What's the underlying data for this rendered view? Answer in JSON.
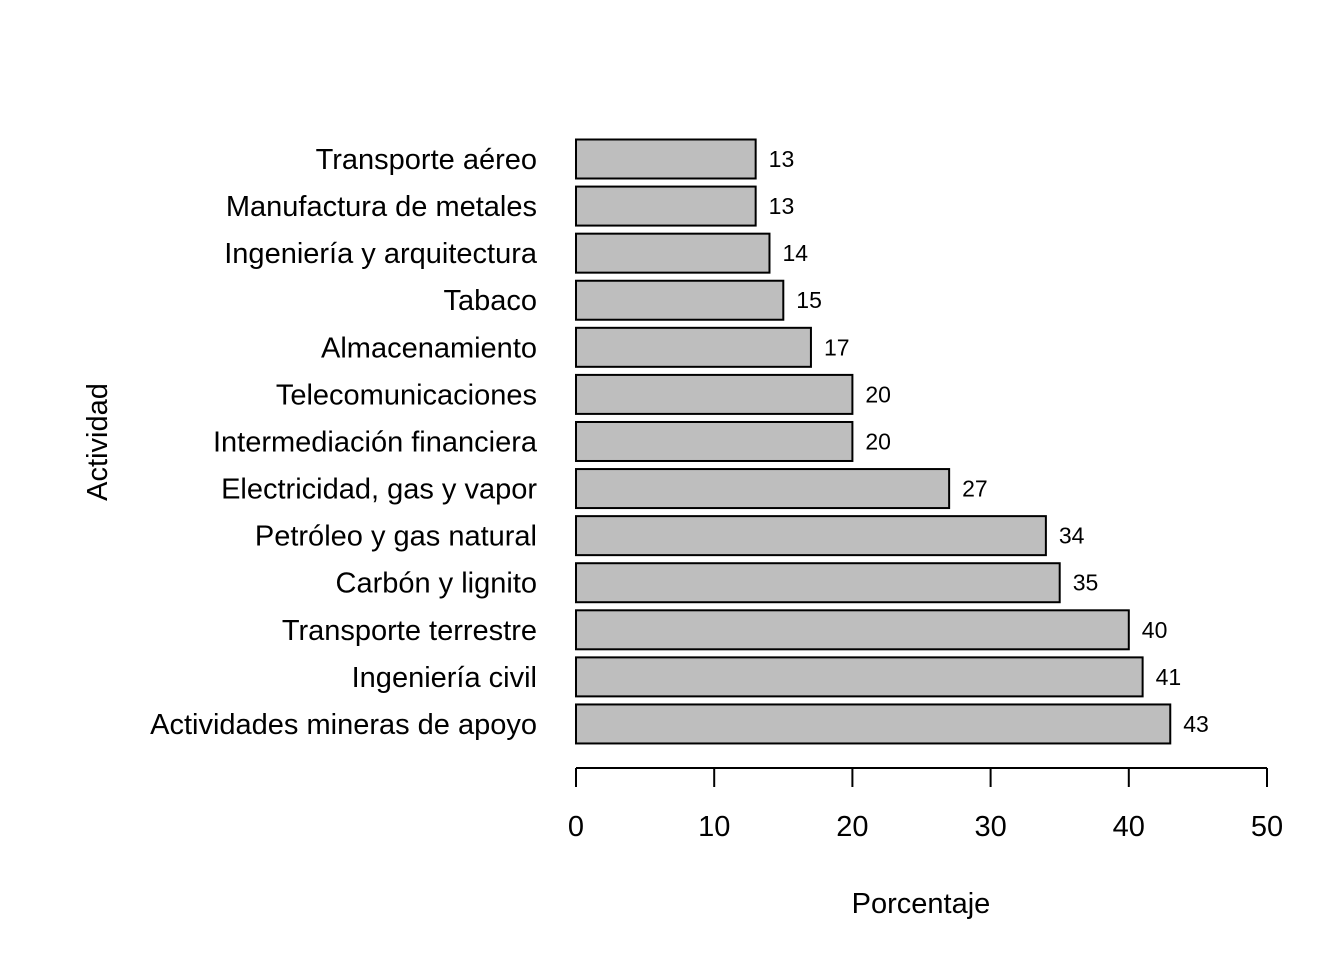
{
  "chart_data": {
    "type": "bar",
    "orientation": "horizontal",
    "title": "",
    "xlabel": "Porcentaje",
    "ylabel": "Actividad",
    "categories": [
      "Transporte aéreo",
      "Manufactura de metales",
      "Ingeniería y arquitectura",
      "Tabaco",
      "Almacenamiento",
      "Telecomunicaciones",
      "Intermediación financiera",
      "Electricidad, gas y vapor",
      "Petróleo y gas natural",
      "Carbón y lignito",
      "Transporte terrestre",
      "Ingeniería civil",
      "Actividades mineras de apoyo"
    ],
    "values": [
      13,
      13,
      14,
      15,
      17,
      20,
      20,
      27,
      34,
      35,
      40,
      41,
      43
    ],
    "value_labels": [
      "13",
      "13",
      "14",
      "15",
      "17",
      "20",
      "20",
      "27",
      "34",
      "35",
      "40",
      "41",
      "43"
    ],
    "xlim": [
      0,
      50
    ],
    "xticks": [
      0,
      10,
      20,
      30,
      40,
      50
    ],
    "xtick_labels": [
      "0",
      "10",
      "20",
      "30",
      "40",
      "50"
    ],
    "grid": false,
    "colors": {
      "bar_fill": "#bebebe",
      "bar_stroke": "#000000"
    }
  }
}
